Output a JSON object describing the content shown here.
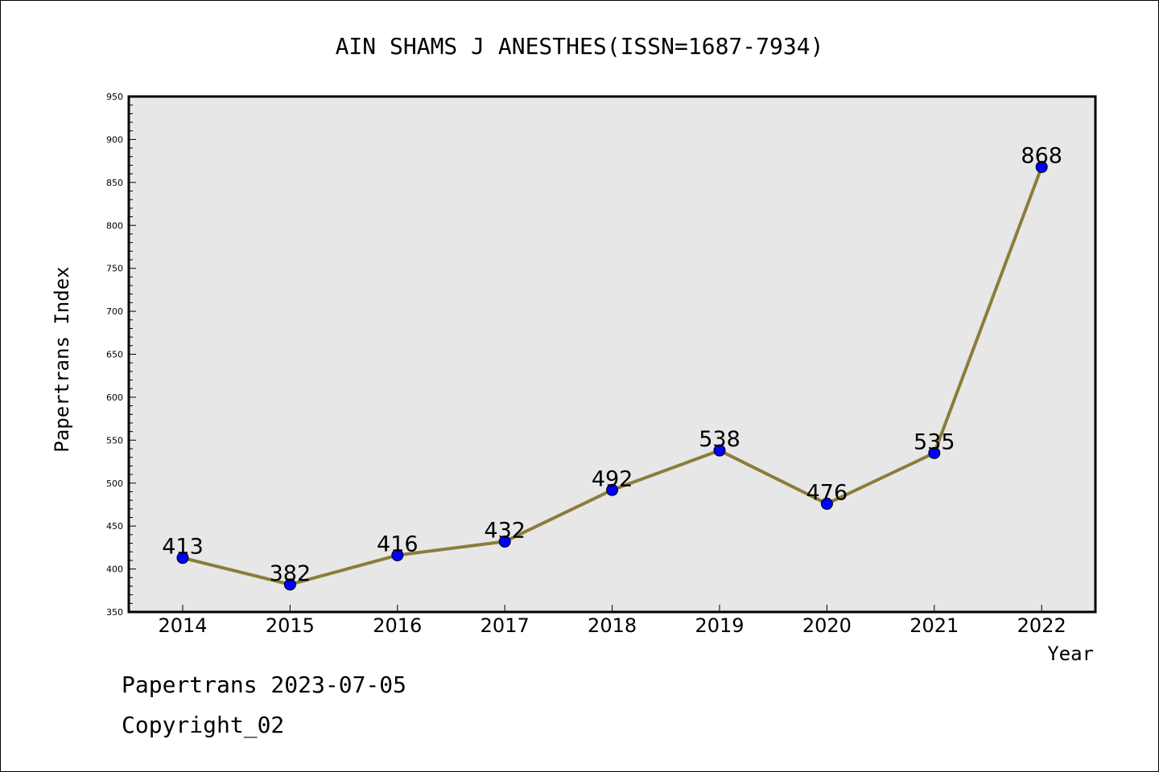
{
  "chart_data": {
    "type": "line",
    "title": "AIN SHAMS J ANESTHES(ISSN=1687-7934)",
    "xlabel": "Year",
    "ylabel": "Papertrans Index",
    "categories": [
      "2014",
      "2015",
      "2016",
      "2017",
      "2018",
      "2019",
      "2020",
      "2021",
      "2022"
    ],
    "series": [
      {
        "values": [
          413,
          382,
          416,
          432,
          492,
          538,
          476,
          535,
          868
        ]
      }
    ],
    "ylim": [
      350,
      950
    ],
    "yticks": [
      350,
      400,
      450,
      500,
      550,
      600,
      650,
      700,
      750,
      800,
      850,
      900,
      950
    ],
    "grid": false,
    "data_labels": true,
    "colors": {
      "line": "#8b7d3a",
      "marker": "#0000ff",
      "plot_background": "#e7e7e7"
    }
  },
  "footer": {
    "line1": "Papertrans 2023-07-05",
    "line2": "Copyright_02"
  }
}
